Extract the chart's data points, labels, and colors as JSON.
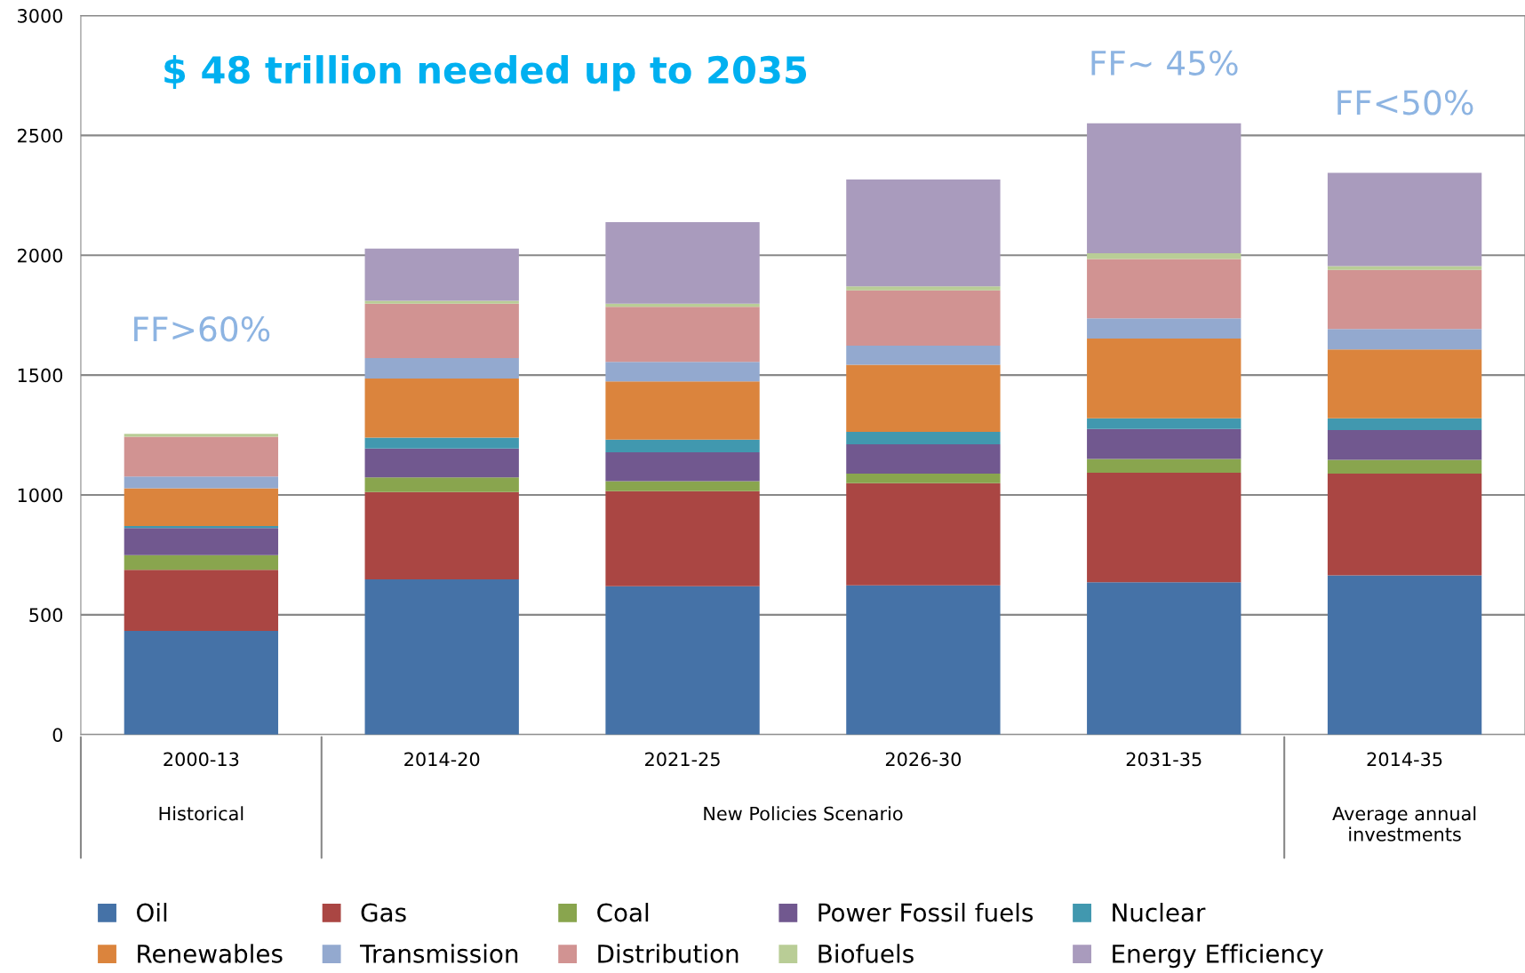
{
  "chart_data": {
    "type": "bar",
    "stacked": true,
    "categories": [
      "2000-13",
      "2014-20",
      "2021-25",
      "2026-30",
      "2031-35",
      "2014-35"
    ],
    "series": [
      {
        "name": "Oil",
        "color": "#4572a7",
        "values": [
          433,
          648,
          619,
          623,
          636,
          664
        ]
      },
      {
        "name": "Gas",
        "color": "#aa4643",
        "values": [
          255,
          364,
          397,
          426,
          457,
          425
        ]
      },
      {
        "name": "Coal",
        "color": "#89a54e",
        "values": [
          61,
          61,
          41,
          40,
          57,
          57
        ]
      },
      {
        "name": "Power Fossil fuels",
        "color": "#71588f",
        "values": [
          113,
          121,
          121,
          122,
          125,
          125
        ]
      },
      {
        "name": "Nuclear",
        "color": "#4198af",
        "values": [
          8,
          45,
          53,
          52,
          45,
          49
        ]
      },
      {
        "name": "Renewables",
        "color": "#db843d",
        "values": [
          158,
          247,
          243,
          280,
          332,
          287
        ]
      },
      {
        "name": "Transmission",
        "color": "#93a9cf",
        "values": [
          49,
          85,
          81,
          80,
          85,
          85
        ]
      },
      {
        "name": "Distribution",
        "color": "#d19392",
        "values": [
          166,
          227,
          230,
          231,
          247,
          247
        ]
      },
      {
        "name": "Biofuels",
        "color": "#b9cd96",
        "values": [
          12,
          12,
          13,
          16,
          24,
          16
        ]
      },
      {
        "name": "Energy Efficiency",
        "color": "#a99bbd",
        "values": [
          0,
          218,
          340,
          446,
          543,
          389
        ]
      }
    ],
    "ylim": [
      0,
      3000
    ],
    "yticks": [
      0,
      500,
      1000,
      1500,
      2000,
      2500,
      3000
    ],
    "grid": "y",
    "legend": "bottom",
    "annotations": [
      "$ 48 trillion needed up to 2035",
      "Historical",
      "New Policies Scenario",
      "Average annual\ninvestments",
      "FF>60%",
      "FF~ 45%",
      "FF<50%"
    ]
  }
}
